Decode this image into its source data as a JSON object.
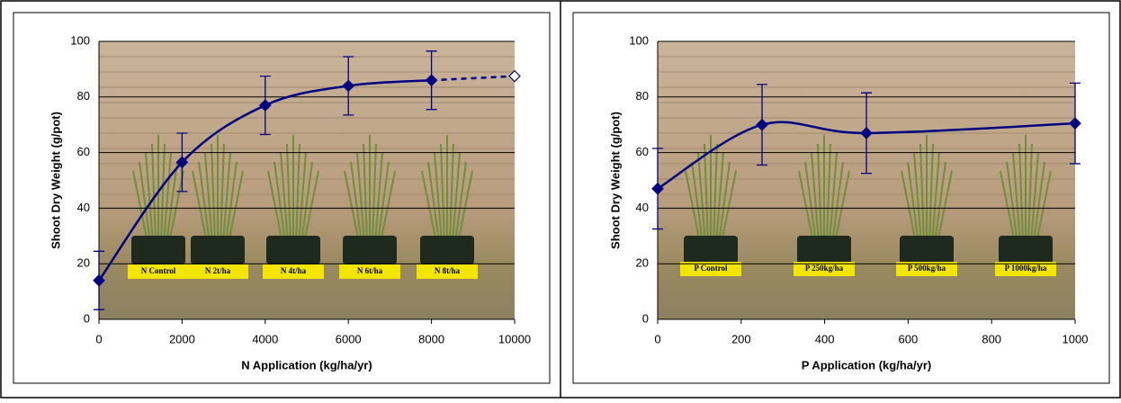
{
  "chart_data": [
    {
      "type": "line",
      "xlabel": "N Application (kg/ha/yr)",
      "ylabel": "Shoot Dry Weight (g/pot)",
      "xlim": [
        0,
        10000
      ],
      "xticks": [
        0,
        2000,
        4000,
        6000,
        8000,
        10000
      ],
      "ylim": [
        0,
        100
      ],
      "yticks": [
        0,
        20,
        40,
        60,
        80,
        100
      ],
      "grid": true,
      "series": [
        {
          "color": "#000080",
          "x": [
            0,
            2000,
            4000,
            6000,
            8000
          ],
          "values": [
            14,
            56.5,
            77,
            84,
            86
          ],
          "errors": [
            10.5,
            10.5,
            10.5,
            10.5,
            10.5
          ],
          "style": "solid",
          "marker": "filled"
        },
        {
          "color": "#000080",
          "x": [
            8000,
            10000
          ],
          "values": [
            86,
            87.5
          ],
          "style": "dashed",
          "marker": "hollow"
        }
      ],
      "annotations": [
        "N Control",
        "N 2t/ha",
        "N 4t/ha",
        "N 6t/ha",
        "N 8t/ha"
      ]
    },
    {
      "type": "line",
      "xlabel": "P Application (kg/ha/yr)",
      "ylabel": "Shoot Dry Weight (g/pot)",
      "xlim": [
        0,
        1000
      ],
      "xticks": [
        0,
        200,
        400,
        600,
        800,
        1000
      ],
      "ylim": [
        0,
        100
      ],
      "yticks": [
        0,
        20,
        40,
        60,
        80,
        100
      ],
      "grid": true,
      "series": [
        {
          "color": "#000080",
          "x": [
            0,
            250,
            500,
            1000
          ],
          "values": [
            47,
            70,
            67,
            70.5
          ],
          "errors": [
            14.5,
            14.5,
            14.5,
            14.5
          ],
          "style": "solid",
          "marker": "filled"
        }
      ],
      "annotations": [
        "P Control",
        "P 250kg/ha",
        "P 500kg/ha",
        "P 1000kg/ha"
      ]
    }
  ]
}
